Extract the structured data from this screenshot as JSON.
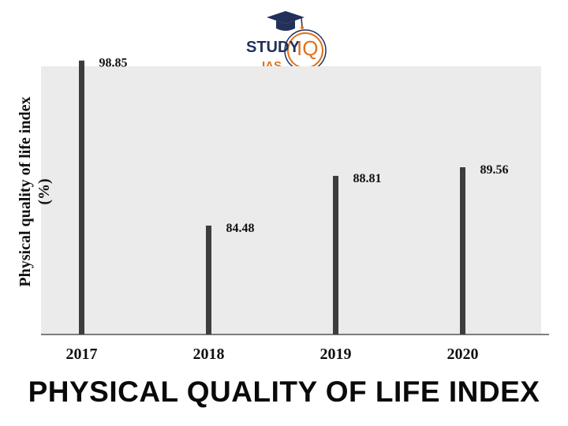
{
  "logo": {
    "brand_top": "STUDY",
    "brand_iq": "IQ",
    "brand_sub": "IAS"
  },
  "page_title": "PHYSICAL QUALITY OF LIFE INDEX",
  "chart_data": {
    "type": "bar",
    "title": "",
    "categories": [
      "2017",
      "2018",
      "2019",
      "2020"
    ],
    "values": [
      98.85,
      84.48,
      88.81,
      89.56
    ],
    "data_labels": [
      "98.85",
      "84.48",
      "88.81",
      "89.56"
    ],
    "xlabel": "",
    "ylabel_lines": [
      "Physical quality of life index",
      "(%)"
    ],
    "ylim": [
      75,
      100
    ],
    "grid": false,
    "legend": "none",
    "colors": {
      "bar": "#3d3d3d",
      "plot_bg": "#ebebeb",
      "axis": "#555555"
    }
  }
}
